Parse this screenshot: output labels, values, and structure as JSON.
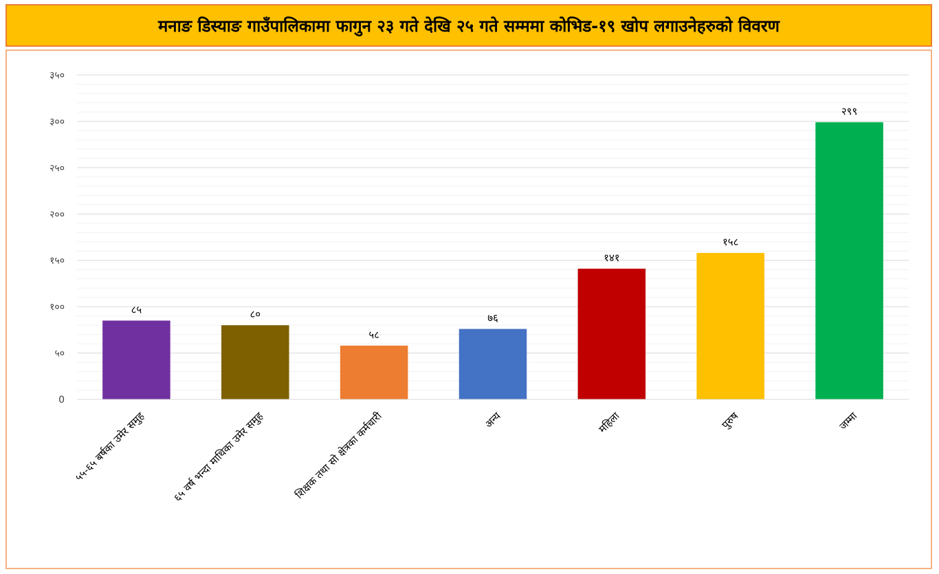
{
  "title": "मनाङ डिस्याङ गाउँपालिकामा फागुन २३ गते देखि २५ गते सम्ममा कोभिड-१९ खोप लगाउनेहरुको विवरण",
  "colors": {
    "title_background": "#FFC000",
    "title_border": "#ED7D31",
    "frame_border": "#F4B183"
  },
  "chart_data": {
    "type": "bar",
    "categories": [
      "५५-६५ बर्षका उमेर समुह",
      "६५ वर्ष भन्दा माथिका उमेर समुह",
      "शिक्षक तथा सो क्षेत्रका कर्मचारी",
      "अन्य",
      "महिला",
      "पुरुष",
      "जम्मा"
    ],
    "values": [
      85,
      80,
      58,
      76,
      141,
      158,
      299
    ],
    "value_labels": [
      "८५",
      "८०",
      "५८",
      "७६",
      "१४१",
      "१५८",
      "२९९"
    ],
    "bar_colors": [
      "#7030A0",
      "#7F6000",
      "#ED7D31",
      "#4472C4",
      "#C00000",
      "#FFC000",
      "#00B050"
    ],
    "ylim": [
      0,
      350
    ],
    "y_ticks": [
      0,
      50,
      100,
      150,
      200,
      250,
      300,
      350
    ],
    "y_tick_labels": [
      "0",
      "५०",
      "१००",
      "१५०",
      "२००",
      "२५०",
      "३००",
      "३५०"
    ],
    "grid": true,
    "legend": "none"
  }
}
